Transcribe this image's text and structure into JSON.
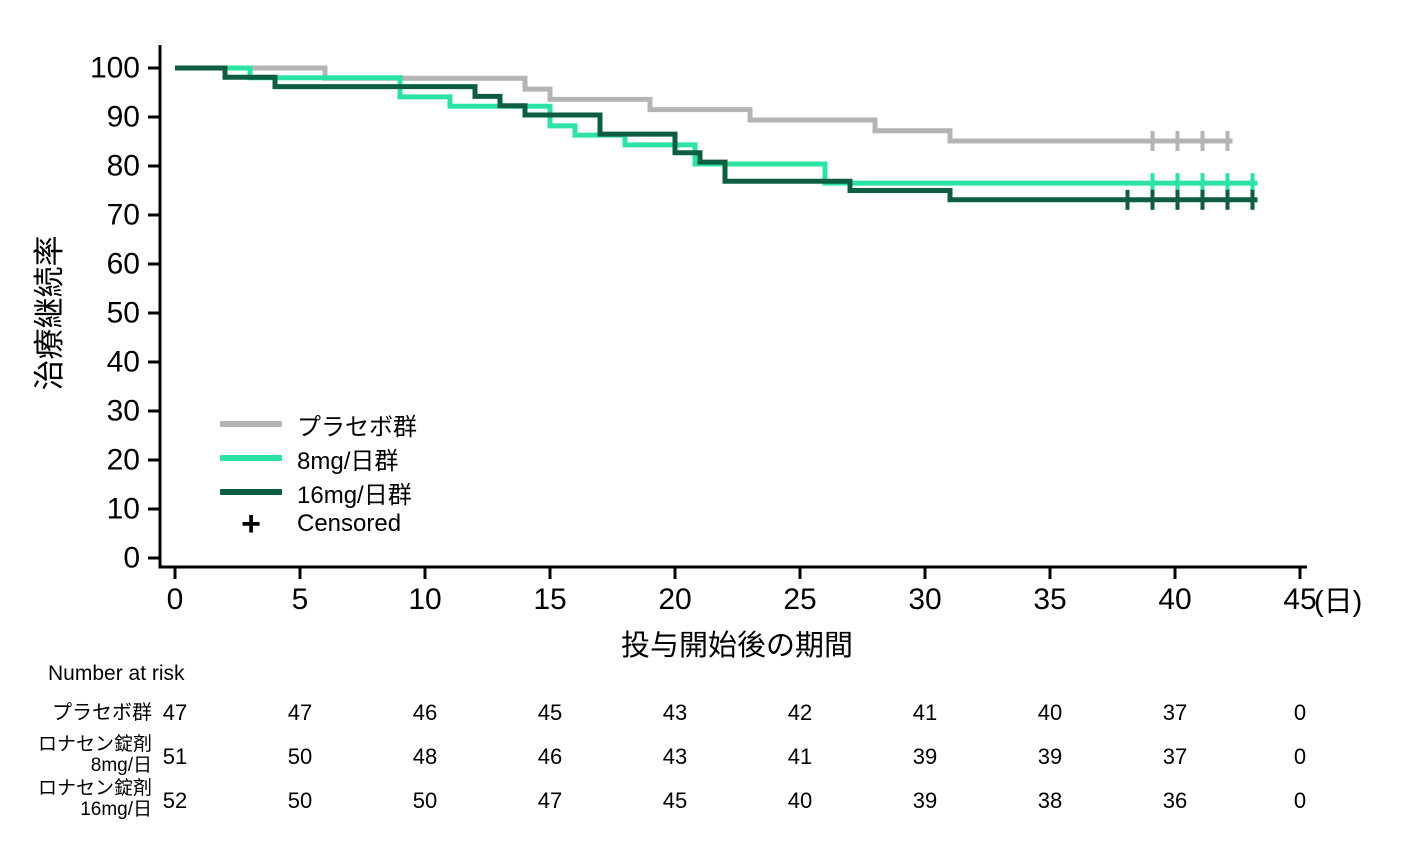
{
  "chart_data": {
    "type": "line",
    "variant": "kaplan_meier_step_survival",
    "title": "",
    "ylabel": "治療継続率",
    "xlabel": "投与開始後の期間",
    "x_unit_label": "(日)",
    "xlim": [
      0,
      45
    ],
    "ylim": [
      0,
      100
    ],
    "xticks": [
      0,
      5,
      10,
      15,
      20,
      25,
      30,
      35,
      40,
      45
    ],
    "yticks": [
      0,
      10,
      20,
      30,
      40,
      50,
      60,
      70,
      80,
      90,
      100
    ],
    "grid": false,
    "legend_position": "inside-lower-left",
    "censored_marker": "+",
    "censored_legend_label": "Censored",
    "axis_color": "#000000",
    "series": [
      {
        "name": "プラセボ群",
        "color": "#b4b4b4",
        "steps": [
          [
            0,
            100
          ],
          [
            6,
            97.9
          ],
          [
            14,
            95.7
          ],
          [
            15,
            93.6
          ],
          [
            19,
            91.5
          ],
          [
            23,
            89.4
          ],
          [
            28,
            87.2
          ],
          [
            31,
            85.1
          ]
        ],
        "end_day": 42.3,
        "censor_days": [
          39.1,
          40.1,
          41.1,
          42.1
        ]
      },
      {
        "name": "8mg/日群",
        "color": "#2de3a2",
        "steps": [
          [
            0,
            100
          ],
          [
            3,
            98.0
          ],
          [
            9,
            94.1
          ],
          [
            11,
            92.2
          ],
          [
            15,
            88.2
          ],
          [
            16,
            86.3
          ],
          [
            18,
            84.3
          ],
          [
            20.8,
            80.4
          ],
          [
            26,
            76.5
          ]
        ],
        "end_day": 43.3,
        "censor_days": [
          39.1,
          40.1,
          41.1,
          42.1,
          43.1
        ]
      },
      {
        "name": "16mg/日群",
        "color": "#0d5d40",
        "steps": [
          [
            0,
            100
          ],
          [
            2,
            98.1
          ],
          [
            4,
            96.2
          ],
          [
            12,
            94.2
          ],
          [
            13,
            92.3
          ],
          [
            14,
            90.4
          ],
          [
            17,
            86.5
          ],
          [
            20,
            82.7
          ],
          [
            21,
            80.8
          ],
          [
            22,
            76.9
          ],
          [
            27,
            75.0
          ],
          [
            31,
            73.1
          ]
        ],
        "end_day": 43.3,
        "censor_days": [
          38.1,
          39.1,
          40.1,
          41.1,
          42.1,
          43.1
        ]
      }
    ],
    "risk_table": {
      "header": "Number at risk",
      "times": [
        0,
        5,
        10,
        15,
        20,
        25,
        30,
        35,
        40,
        45
      ],
      "rows": [
        {
          "label_lines": [
            "プラセボ群"
          ],
          "values": [
            47,
            47,
            46,
            45,
            43,
            42,
            41,
            40,
            37,
            0
          ]
        },
        {
          "label_lines": [
            "ロナセン錠剤",
            "8mg/日"
          ],
          "values": [
            51,
            50,
            48,
            46,
            43,
            41,
            39,
            39,
            37,
            0
          ]
        },
        {
          "label_lines": [
            "ロナセン錠剤",
            "16mg/日"
          ],
          "values": [
            52,
            50,
            50,
            47,
            45,
            40,
            39,
            38,
            36,
            0
          ]
        }
      ]
    }
  }
}
